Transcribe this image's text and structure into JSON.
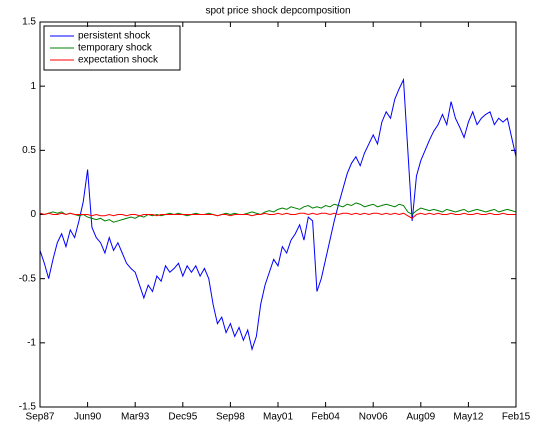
{
  "chart_data": {
    "type": "line",
    "title": "spot price shock depcomposition",
    "x": [
      0,
      3,
      6,
      9,
      12,
      15,
      18,
      21,
      24,
      27,
      30,
      33,
      36,
      39,
      42,
      45,
      48,
      51,
      54,
      57,
      60,
      63,
      66,
      69,
      72,
      75,
      78,
      81,
      84,
      87,
      90,
      93,
      96,
      99,
      102,
      105,
      108,
      111,
      114,
      117,
      120,
      123,
      126,
      129,
      132,
      135,
      138,
      141,
      144,
      147,
      150,
      153,
      156,
      159,
      162,
      165,
      168,
      171,
      174,
      177,
      180,
      183,
      186,
      189,
      192,
      195,
      198,
      201,
      204,
      207,
      210,
      213,
      216,
      219,
      222,
      225,
      228,
      231,
      234,
      237,
      240,
      243,
      246,
      249,
      252,
      255,
      258,
      261,
      264,
      267,
      270,
      273,
      276,
      279,
      282,
      285,
      288,
      291,
      294,
      297,
      300,
      303,
      306,
      309,
      312,
      315,
      318,
      321,
      324,
      327,
      330
    ],
    "series": [
      {
        "name": "persistent shock",
        "color": "#0000ff",
        "values": [
          -0.28,
          -0.38,
          -0.5,
          -0.35,
          -0.22,
          -0.15,
          -0.25,
          -0.12,
          -0.18,
          -0.05,
          0.1,
          0.35,
          -0.1,
          -0.18,
          -0.22,
          -0.3,
          -0.18,
          -0.28,
          -0.22,
          -0.3,
          -0.38,
          -0.42,
          -0.45,
          -0.55,
          -0.65,
          -0.55,
          -0.6,
          -0.48,
          -0.52,
          -0.4,
          -0.45,
          -0.42,
          -0.38,
          -0.48,
          -0.4,
          -0.45,
          -0.4,
          -0.48,
          -0.42,
          -0.5,
          -0.7,
          -0.85,
          -0.8,
          -0.92,
          -0.85,
          -0.95,
          -0.88,
          -0.98,
          -0.9,
          -1.05,
          -0.95,
          -0.7,
          -0.55,
          -0.45,
          -0.35,
          -0.4,
          -0.25,
          -0.3,
          -0.2,
          -0.15,
          -0.08,
          -0.2,
          -0.02,
          -0.05,
          -0.6,
          -0.5,
          -0.35,
          -0.2,
          -0.05,
          0.08,
          0.2,
          0.32,
          0.4,
          0.45,
          0.38,
          0.48,
          0.55,
          0.62,
          0.55,
          0.72,
          0.8,
          0.75,
          0.9,
          0.98,
          1.05,
          0.5,
          -0.05,
          0.3,
          0.42,
          0.5,
          0.58,
          0.65,
          0.7,
          0.78,
          0.7,
          0.88,
          0.75,
          0.68,
          0.6,
          0.72,
          0.8,
          0.7,
          0.75,
          0.78,
          0.8,
          0.7,
          0.75,
          0.72,
          0.75,
          0.6,
          0.45
        ]
      },
      {
        "name": "temporary shock",
        "color": "#008000",
        "values": [
          0.01,
          0.0,
          0.01,
          0.02,
          0.01,
          0.02,
          0.0,
          0.01,
          0.0,
          -0.01,
          0.0,
          -0.02,
          -0.03,
          -0.04,
          -0.03,
          -0.05,
          -0.04,
          -0.06,
          -0.05,
          -0.04,
          -0.03,
          -0.02,
          -0.03,
          -0.01,
          -0.02,
          0.0,
          -0.01,
          0.0,
          -0.01,
          0.0,
          0.01,
          0.0,
          0.01,
          0.0,
          -0.01,
          0.0,
          0.01,
          0.0,
          0.0,
          0.01,
          0.0,
          -0.01,
          0.0,
          0.01,
          0.0,
          0.01,
          0.0,
          0.0,
          0.01,
          0.02,
          0.01,
          0.0,
          0.02,
          0.03,
          0.02,
          0.04,
          0.05,
          0.04,
          0.06,
          0.05,
          0.04,
          0.06,
          0.07,
          0.05,
          0.06,
          0.05,
          0.07,
          0.06,
          0.08,
          0.07,
          0.06,
          0.08,
          0.07,
          0.09,
          0.08,
          0.06,
          0.07,
          0.08,
          0.06,
          0.07,
          0.08,
          0.07,
          0.06,
          0.08,
          0.07,
          0.02,
          0.0,
          0.03,
          0.05,
          0.04,
          0.03,
          0.04,
          0.03,
          0.02,
          0.04,
          0.03,
          0.02,
          0.03,
          0.04,
          0.02,
          0.03,
          0.04,
          0.03,
          0.02,
          0.03,
          0.04,
          0.02,
          0.03,
          0.04,
          0.03,
          0.02
        ]
      },
      {
        "name": "expectation shock",
        "color": "#ff0000",
        "values": [
          0.01,
          0.0,
          0.01,
          0.0,
          0.0,
          0.01,
          0.0,
          0.01,
          0.0,
          0.0,
          0.0,
          0.0,
          -0.01,
          0.0,
          -0.01,
          -0.01,
          0.0,
          -0.01,
          0.0,
          0.0,
          -0.01,
          0.0,
          0.0,
          -0.01,
          0.0,
          0.0,
          0.0,
          -0.01,
          0.0,
          0.0,
          0.0,
          0.0,
          0.0,
          0.0,
          0.0,
          0.0,
          0.0,
          0.0,
          0.0,
          0.0,
          0.0,
          -0.01,
          0.0,
          0.0,
          -0.01,
          0.0,
          0.0,
          0.0,
          0.0,
          -0.01,
          0.0,
          0.0,
          0.01,
          0.0,
          0.0,
          0.01,
          0.0,
          0.01,
          0.0,
          0.0,
          0.01,
          0.01,
          0.0,
          0.01,
          0.0,
          0.01,
          0.01,
          0.0,
          0.01,
          0.0,
          0.01,
          0.01,
          0.0,
          0.01,
          0.0,
          0.01,
          0.0,
          0.01,
          0.01,
          0.0,
          0.01,
          0.0,
          0.01,
          0.0,
          0.01,
          -0.01,
          -0.03,
          0.0,
          0.01,
          0.0,
          0.01,
          0.0,
          0.01,
          0.0,
          0.0,
          0.01,
          0.0,
          0.0,
          0.01,
          0.0,
          0.0,
          0.01,
          0.0,
          0.0,
          0.01,
          0.0,
          0.0,
          0.01,
          0.0,
          0.0,
          0.0
        ]
      }
    ],
    "xlim": [
      0,
      330
    ],
    "xticks": [
      {
        "value": 0,
        "label": "Sep87"
      },
      {
        "value": 33,
        "label": "Jun90"
      },
      {
        "value": 66,
        "label": "Mar93"
      },
      {
        "value": 99,
        "label": "Dec95"
      },
      {
        "value": 132,
        "label": "Sep98"
      },
      {
        "value": 165,
        "label": "May01"
      },
      {
        "value": 198,
        "label": "Feb04"
      },
      {
        "value": 231,
        "label": "Nov06"
      },
      {
        "value": 264,
        "label": "Aug09"
      },
      {
        "value": 297,
        "label": "May12"
      },
      {
        "value": 330,
        "label": "Feb15"
      }
    ],
    "ylim": [
      -1.5,
      1.5
    ],
    "yticks": [
      -1.5,
      -1,
      -0.5,
      0,
      0.5,
      1,
      1.5
    ],
    "legend": "upper left"
  }
}
